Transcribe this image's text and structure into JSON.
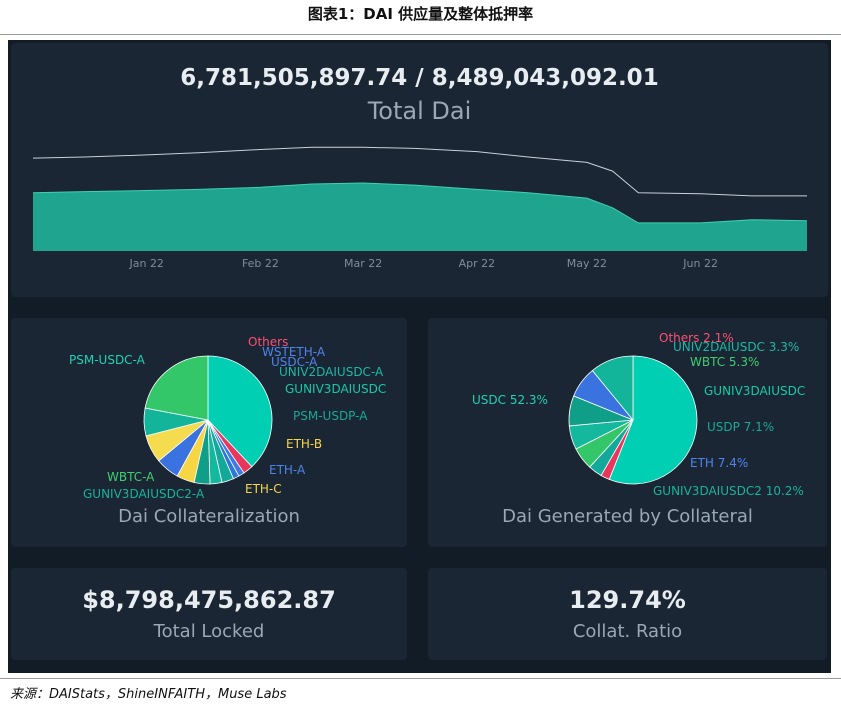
{
  "figure_title": "图表1：DAI 供应量及整体抵押率",
  "source": "来源：DAIStats，ShineINFAITH，Muse Labs",
  "colors": {
    "accent": "#1fa58f",
    "line": "#c9d1d9",
    "bg": "#121c26",
    "card": "#1a2633"
  },
  "supply_card": {
    "value": "6,781,505,897.74 / 8,489,043,092.01",
    "label": "Total Dai"
  },
  "collat_card": {
    "label": "Dai Collateralization"
  },
  "generated_card": {
    "label": "Dai Generated by Collateral"
  },
  "locked_card": {
    "value": "$8,798,475,862.87",
    "label": "Total Locked"
  },
  "ratio_card": {
    "value": "129.74%",
    "label": "Collat. Ratio"
  },
  "chart_data": [
    {
      "type": "area",
      "x_tick_labels": [
        "Jan 22",
        "Feb 22",
        "Mar 22",
        "Apr 22",
        "May 22",
        "Jun 22"
      ],
      "x": [
        "2021-12-01",
        "2021-12-15",
        "2022-01-01",
        "2022-01-15",
        "2022-02-01",
        "2022-02-15",
        "2022-03-01",
        "2022-03-15",
        "2022-04-01",
        "2022-04-15",
        "2022-05-01",
        "2022-05-08",
        "2022-05-15",
        "2022-06-01",
        "2022-06-15",
        "2022-06-30"
      ],
      "series": [
        {
          "values": [
            7.2,
            7.25,
            7.3,
            7.35,
            7.45,
            7.6,
            7.65,
            7.55,
            7.35,
            7.2,
            6.95,
            6.5,
            5.8,
            5.8,
            5.95,
            5.9
          ]
        },
        {
          "values": [
            8.8,
            8.85,
            8.95,
            9.05,
            9.2,
            9.3,
            9.3,
            9.25,
            9.1,
            8.85,
            8.6,
            8.2,
            7.2,
            7.15,
            7.05,
            7.05
          ]
        }
      ],
      "colors": [
        "#1fa58f",
        "#c9d1d9"
      ]
    },
    {
      "type": "pie",
      "labels": [
        "PSM-USDC-A",
        "Others",
        "WSTETH-A",
        "USDC-A",
        "UNIV2DAIUSDC-A",
        "GUNIV3DAIUSDC",
        "PSM-USDP-A",
        "ETH-B",
        "ETH-A",
        "ETH-C",
        "GUNIV3DAIUSDC2-A",
        "WBTC-A"
      ],
      "values": [
        38.0,
        2.5,
        1.5,
        1.5,
        3.0,
        3.0,
        4.0,
        4.5,
        6.0,
        7.0,
        7.0,
        22.0
      ],
      "colors": [
        "#00cfb4",
        "#e8365d",
        "#3d7be0",
        "#2b78d8",
        "#12a99a",
        "#14b89c",
        "#0f9e87",
        "#f7d646",
        "#3a72e0",
        "#f5dc4e",
        "#12b49a",
        "#33c76a"
      ],
      "label_colors": [
        "#1ed3b4",
        "#ff4f73",
        "#4f84ec",
        "#4f84ec",
        "#1fb8a6",
        "#19c9a6",
        "#1aa894",
        "#f7d646",
        "#4f84ec",
        "#f7d646",
        "#1ab39a",
        "#3fcf71"
      ]
    },
    {
      "type": "pie",
      "labels": [
        "USDC 52.3%",
        "Others 2.1%",
        "UNIV2DAIUSDC 3.3%",
        "WBTC 5.3%",
        "GUNIV3DAIUSDC",
        "USDP 7.1%",
        "ETH 7.4%",
        "GUNIV3DAIUSDC2 10.2%"
      ],
      "values": [
        52.3,
        2.1,
        3.3,
        5.3,
        5.6,
        7.1,
        7.4,
        10.2
      ],
      "colors": [
        "#00cfb4",
        "#e8365d",
        "#12a99a",
        "#33c76a",
        "#14b89c",
        "#0f9e87",
        "#3a72e0",
        "#12b49a"
      ],
      "label_colors": [
        "#1ed3b4",
        "#ff4f73",
        "#1fb8a6",
        "#3fcf71",
        "#19c9a6",
        "#1aa894",
        "#4f84ec",
        "#1ab39a"
      ]
    }
  ]
}
